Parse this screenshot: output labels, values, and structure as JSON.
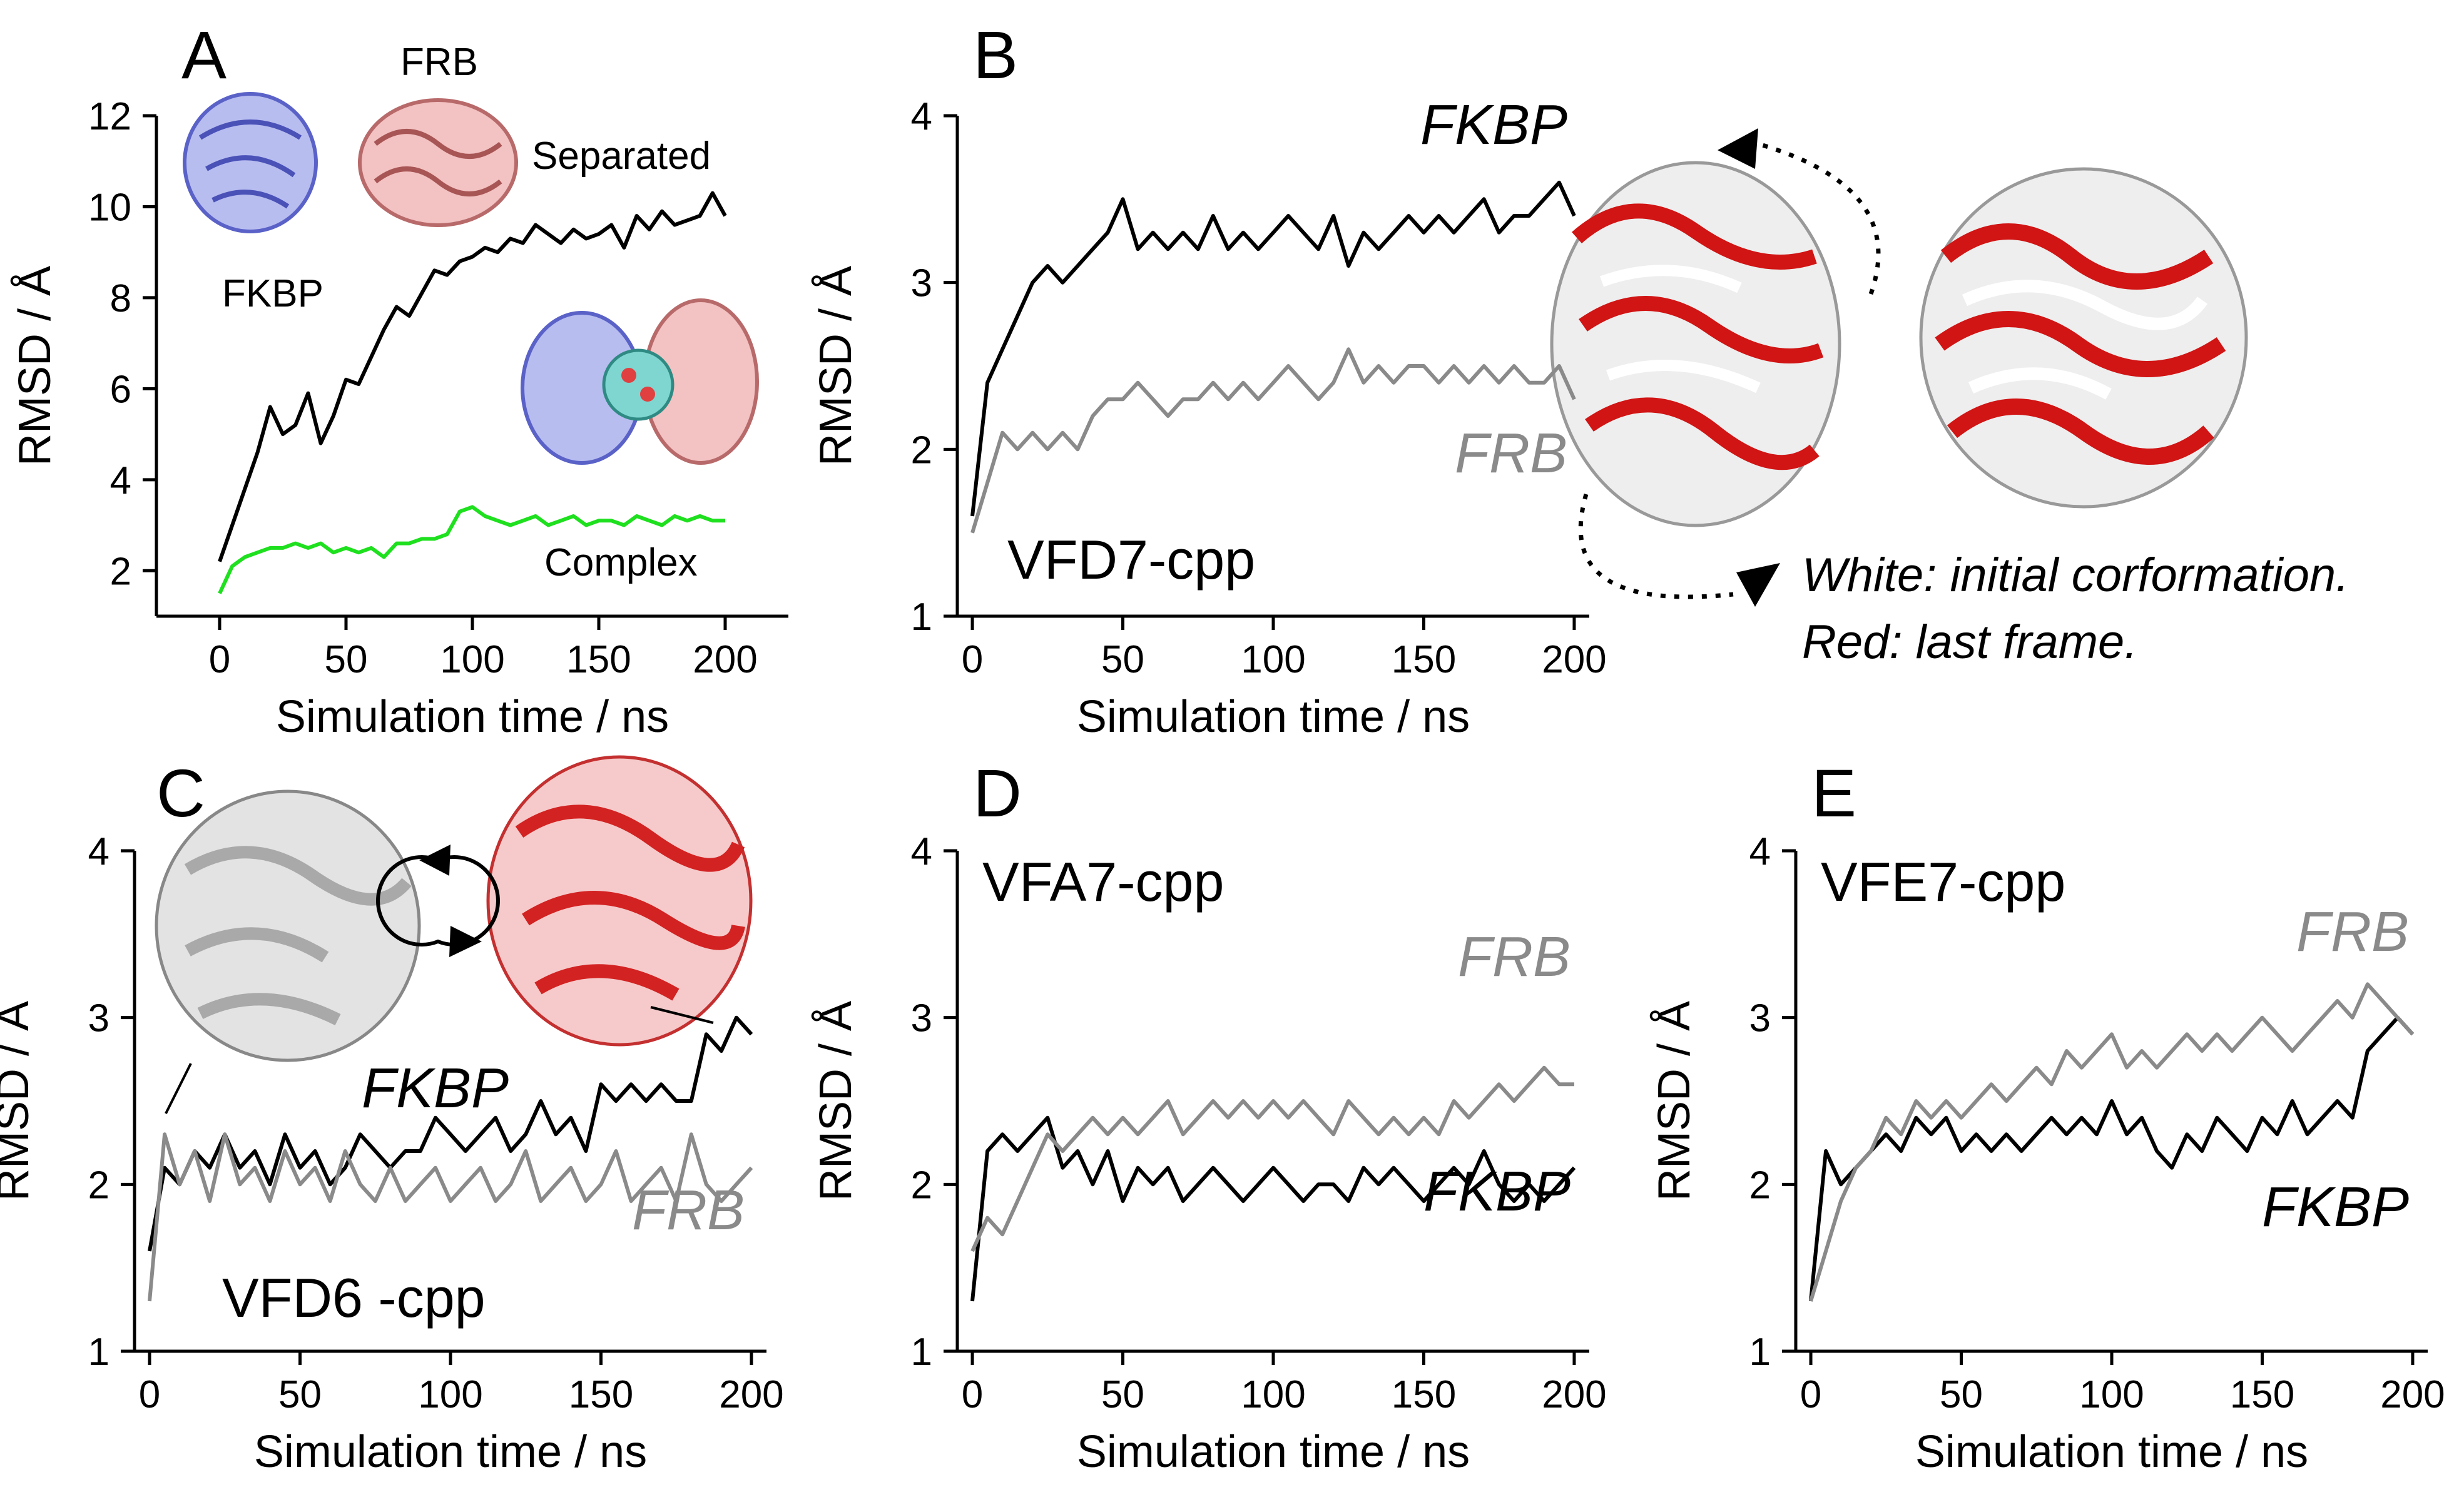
{
  "figure": {
    "note_line1": "White: initial corformation.",
    "note_line2": "Red: last frame."
  },
  "chart_data": [
    {
      "panel": "A",
      "type": "line",
      "xlabel": "Simulation time / ns",
      "ylabel": "RMSD / Å",
      "xlim": [
        -25,
        225
      ],
      "ylim": [
        1,
        12
      ],
      "xticks": [
        0,
        50,
        100,
        150,
        200
      ],
      "yticks": [
        2,
        4,
        6,
        8,
        10,
        12
      ],
      "labels": {
        "separated": "Separated",
        "complex": "Complex",
        "frb_struct": "FRB",
        "fkbp_struct": "FKBP"
      },
      "series": [
        {
          "name": "Separated",
          "color": "#000000",
          "x": [
            0,
            5,
            10,
            15,
            20,
            25,
            30,
            35,
            40,
            45,
            50,
            55,
            60,
            65,
            70,
            75,
            80,
            85,
            90,
            95,
            100,
            105,
            110,
            115,
            120,
            125,
            130,
            135,
            140,
            145,
            150,
            155,
            160,
            165,
            170,
            175,
            180,
            185,
            190,
            195,
            200
          ],
          "y": [
            2.2,
            3.0,
            3.8,
            4.6,
            5.6,
            5.0,
            5.2,
            5.9,
            4.8,
            5.4,
            6.2,
            6.1,
            6.7,
            7.3,
            7.8,
            7.6,
            8.1,
            8.6,
            8.5,
            8.8,
            8.9,
            9.1,
            9.0,
            9.3,
            9.2,
            9.6,
            9.4,
            9.2,
            9.5,
            9.3,
            9.4,
            9.6,
            9.1,
            9.8,
            9.5,
            9.9,
            9.6,
            9.7,
            9.8,
            10.3,
            9.8
          ]
        },
        {
          "name": "Complex",
          "color": "#1fe01f",
          "x": [
            0,
            5,
            10,
            15,
            20,
            25,
            30,
            35,
            40,
            45,
            50,
            55,
            60,
            65,
            70,
            75,
            80,
            85,
            90,
            95,
            100,
            105,
            110,
            115,
            120,
            125,
            130,
            135,
            140,
            145,
            150,
            155,
            160,
            165,
            170,
            175,
            180,
            185,
            190,
            195,
            200
          ],
          "y": [
            1.5,
            2.1,
            2.3,
            2.4,
            2.5,
            2.5,
            2.6,
            2.5,
            2.6,
            2.4,
            2.5,
            2.4,
            2.5,
            2.3,
            2.6,
            2.6,
            2.7,
            2.7,
            2.8,
            3.3,
            3.4,
            3.2,
            3.1,
            3.0,
            3.1,
            3.2,
            3.0,
            3.1,
            3.2,
            3.0,
            3.1,
            3.1,
            3.0,
            3.2,
            3.1,
            3.0,
            3.2,
            3.1,
            3.2,
            3.1,
            3.1
          ]
        }
      ]
    },
    {
      "panel": "B",
      "type": "line",
      "title": "VFD7-cpp",
      "xlabel": "Simulation time / ns",
      "ylabel": "RMSD / Å",
      "xlim": [
        -5,
        205
      ],
      "ylim": [
        1,
        4
      ],
      "xticks": [
        0,
        50,
        100,
        150,
        200
      ],
      "yticks": [
        1,
        2,
        3,
        4
      ],
      "series": [
        {
          "name": "FKBP",
          "color": "#000000",
          "x": [
            0,
            5,
            10,
            15,
            20,
            25,
            30,
            35,
            40,
            45,
            50,
            55,
            60,
            65,
            70,
            75,
            80,
            85,
            90,
            95,
            100,
            105,
            110,
            115,
            120,
            125,
            130,
            135,
            140,
            145,
            150,
            155,
            160,
            165,
            170,
            175,
            180,
            185,
            190,
            195,
            200
          ],
          "y": [
            1.6,
            2.4,
            2.6,
            2.8,
            3.0,
            3.1,
            3.0,
            3.1,
            3.2,
            3.3,
            3.5,
            3.2,
            3.3,
            3.2,
            3.3,
            3.2,
            3.4,
            3.2,
            3.3,
            3.2,
            3.3,
            3.4,
            3.3,
            3.2,
            3.4,
            3.1,
            3.3,
            3.2,
            3.3,
            3.4,
            3.3,
            3.4,
            3.3,
            3.4,
            3.5,
            3.3,
            3.4,
            3.4,
            3.5,
            3.6,
            3.4
          ]
        },
        {
          "name": "FRB",
          "color": "#8a8a8a",
          "x": [
            0,
            5,
            10,
            15,
            20,
            25,
            30,
            35,
            40,
            45,
            50,
            55,
            60,
            65,
            70,
            75,
            80,
            85,
            90,
            95,
            100,
            105,
            110,
            115,
            120,
            125,
            130,
            135,
            140,
            145,
            150,
            155,
            160,
            165,
            170,
            175,
            180,
            185,
            190,
            195,
            200
          ],
          "y": [
            1.5,
            1.8,
            2.1,
            2.0,
            2.1,
            2.0,
            2.1,
            2.0,
            2.2,
            2.3,
            2.3,
            2.4,
            2.3,
            2.2,
            2.3,
            2.3,
            2.4,
            2.3,
            2.4,
            2.3,
            2.4,
            2.5,
            2.4,
            2.3,
            2.4,
            2.6,
            2.4,
            2.5,
            2.4,
            2.5,
            2.5,
            2.4,
            2.5,
            2.4,
            2.5,
            2.4,
            2.5,
            2.4,
            2.4,
            2.5,
            2.3
          ]
        }
      ]
    },
    {
      "panel": "C",
      "type": "line",
      "title": "VFD6 -cpp",
      "xlabel": "Simulation time / ns",
      "ylabel": "RMSD / Å",
      "xlim": [
        -5,
        205
      ],
      "ylim": [
        1,
        4
      ],
      "xticks": [
        0,
        50,
        100,
        150,
        200
      ],
      "yticks": [
        1,
        2,
        3,
        4
      ],
      "series": [
        {
          "name": "FKBP",
          "color": "#000000",
          "x": [
            0,
            5,
            10,
            15,
            20,
            25,
            30,
            35,
            40,
            45,
            50,
            55,
            60,
            65,
            70,
            75,
            80,
            85,
            90,
            95,
            100,
            105,
            110,
            115,
            120,
            125,
            130,
            135,
            140,
            145,
            150,
            155,
            160,
            165,
            170,
            175,
            180,
            185,
            190,
            195,
            200
          ],
          "y": [
            1.6,
            2.1,
            2.0,
            2.2,
            2.1,
            2.3,
            2.1,
            2.2,
            2.0,
            2.3,
            2.1,
            2.2,
            2.0,
            2.1,
            2.3,
            2.2,
            2.1,
            2.2,
            2.2,
            2.4,
            2.3,
            2.2,
            2.3,
            2.4,
            2.2,
            2.3,
            2.5,
            2.3,
            2.4,
            2.2,
            2.6,
            2.5,
            2.6,
            2.5,
            2.6,
            2.5,
            2.5,
            2.9,
            2.8,
            3.0,
            2.9
          ]
        },
        {
          "name": "FRB",
          "color": "#8a8a8a",
          "x": [
            0,
            5,
            10,
            15,
            20,
            25,
            30,
            35,
            40,
            45,
            50,
            55,
            60,
            65,
            70,
            75,
            80,
            85,
            90,
            95,
            100,
            105,
            110,
            115,
            120,
            125,
            130,
            135,
            140,
            145,
            150,
            155,
            160,
            165,
            170,
            175,
            180,
            185,
            190,
            195,
            200
          ],
          "y": [
            1.3,
            2.3,
            2.0,
            2.2,
            1.9,
            2.3,
            2.0,
            2.1,
            1.9,
            2.2,
            2.0,
            2.1,
            1.9,
            2.2,
            2.0,
            1.9,
            2.1,
            1.9,
            2.0,
            2.1,
            1.9,
            2.0,
            2.1,
            1.9,
            2.0,
            2.2,
            1.9,
            2.0,
            2.1,
            1.9,
            2.0,
            2.2,
            1.9,
            2.0,
            2.1,
            1.9,
            2.3,
            2.0,
            1.9,
            2.0,
            2.1
          ]
        }
      ]
    },
    {
      "panel": "D",
      "type": "line",
      "title": "VFA7-cpp",
      "xlabel": "Simulation time / ns",
      "ylabel": "RMSD / Å",
      "xlim": [
        -5,
        205
      ],
      "ylim": [
        1,
        4
      ],
      "xticks": [
        0,
        50,
        100,
        150,
        200
      ],
      "yticks": [
        1,
        2,
        3,
        4
      ],
      "series": [
        {
          "name": "FKBP",
          "color": "#000000",
          "x": [
            0,
            5,
            10,
            15,
            20,
            25,
            30,
            35,
            40,
            45,
            50,
            55,
            60,
            65,
            70,
            75,
            80,
            85,
            90,
            95,
            100,
            105,
            110,
            115,
            120,
            125,
            130,
            135,
            140,
            145,
            150,
            155,
            160,
            165,
            170,
            175,
            180,
            185,
            190,
            195,
            200
          ],
          "y": [
            1.3,
            2.2,
            2.3,
            2.2,
            2.3,
            2.4,
            2.1,
            2.2,
            2.0,
            2.2,
            1.9,
            2.1,
            2.0,
            2.1,
            1.9,
            2.0,
            2.1,
            2.0,
            1.9,
            2.0,
            2.1,
            2.0,
            1.9,
            2.0,
            2.0,
            1.9,
            2.1,
            2.0,
            2.1,
            2.0,
            1.9,
            2.0,
            2.1,
            2.0,
            2.2,
            2.0,
            1.9,
            2.0,
            1.9,
            2.0,
            2.1
          ]
        },
        {
          "name": "FRB",
          "color": "#8a8a8a",
          "x": [
            0,
            5,
            10,
            15,
            20,
            25,
            30,
            35,
            40,
            45,
            50,
            55,
            60,
            65,
            70,
            75,
            80,
            85,
            90,
            95,
            100,
            105,
            110,
            115,
            120,
            125,
            130,
            135,
            140,
            145,
            150,
            155,
            160,
            165,
            170,
            175,
            180,
            185,
            190,
            195,
            200
          ],
          "y": [
            1.6,
            1.8,
            1.7,
            1.9,
            2.1,
            2.3,
            2.2,
            2.3,
            2.4,
            2.3,
            2.4,
            2.3,
            2.4,
            2.5,
            2.3,
            2.4,
            2.5,
            2.4,
            2.5,
            2.4,
            2.5,
            2.4,
            2.5,
            2.4,
            2.3,
            2.5,
            2.4,
            2.3,
            2.4,
            2.3,
            2.4,
            2.3,
            2.5,
            2.4,
            2.5,
            2.6,
            2.5,
            2.6,
            2.7,
            2.6,
            2.6
          ]
        }
      ]
    },
    {
      "panel": "E",
      "type": "line",
      "title": "VFE7-cpp",
      "xlabel": "Simulation time / ns",
      "ylabel": "RMSD / Å",
      "xlim": [
        -5,
        205
      ],
      "ylim": [
        1,
        4
      ],
      "xticks": [
        0,
        50,
        100,
        150,
        200
      ],
      "yticks": [
        1,
        2,
        3,
        4
      ],
      "series": [
        {
          "name": "FKBP",
          "color": "#000000",
          "x": [
            0,
            5,
            10,
            15,
            20,
            25,
            30,
            35,
            40,
            45,
            50,
            55,
            60,
            65,
            70,
            75,
            80,
            85,
            90,
            95,
            100,
            105,
            110,
            115,
            120,
            125,
            130,
            135,
            140,
            145,
            150,
            155,
            160,
            165,
            170,
            175,
            180,
            185,
            190,
            195,
            200
          ],
          "y": [
            1.3,
            2.2,
            2.0,
            2.1,
            2.2,
            2.3,
            2.2,
            2.4,
            2.3,
            2.4,
            2.2,
            2.3,
            2.2,
            2.3,
            2.2,
            2.3,
            2.4,
            2.3,
            2.4,
            2.3,
            2.5,
            2.3,
            2.4,
            2.2,
            2.1,
            2.3,
            2.2,
            2.4,
            2.3,
            2.2,
            2.4,
            2.3,
            2.5,
            2.3,
            2.4,
            2.5,
            2.4,
            2.8,
            2.9,
            3.0,
            2.9
          ]
        },
        {
          "name": "FRB",
          "color": "#8a8a8a",
          "x": [
            0,
            5,
            10,
            15,
            20,
            25,
            30,
            35,
            40,
            45,
            50,
            55,
            60,
            65,
            70,
            75,
            80,
            85,
            90,
            95,
            100,
            105,
            110,
            115,
            120,
            125,
            130,
            135,
            140,
            145,
            150,
            155,
            160,
            165,
            170,
            175,
            180,
            185,
            190,
            195,
            200
          ],
          "y": [
            1.3,
            1.6,
            1.9,
            2.1,
            2.2,
            2.4,
            2.3,
            2.5,
            2.4,
            2.5,
            2.4,
            2.5,
            2.6,
            2.5,
            2.6,
            2.7,
            2.6,
            2.8,
            2.7,
            2.8,
            2.9,
            2.7,
            2.8,
            2.7,
            2.8,
            2.9,
            2.8,
            2.9,
            2.8,
            2.9,
            3.0,
            2.9,
            2.8,
            2.9,
            3.0,
            3.1,
            3.0,
            3.2,
            3.1,
            3.0,
            2.9
          ]
        }
      ]
    }
  ]
}
